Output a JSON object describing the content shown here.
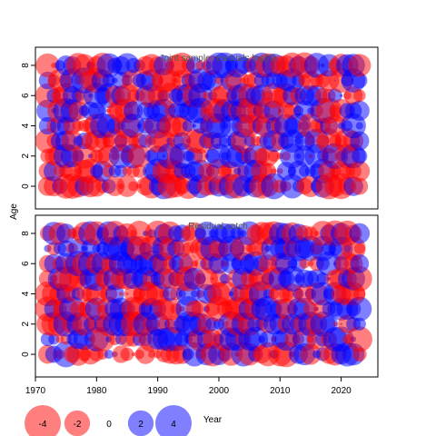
{
  "chart_data": [
    {
      "type": "scatter",
      "title": "Joint sample residuals log(N)",
      "ylabel": "Age",
      "x_range": [
        1970,
        2026
      ],
      "ylim": [
        -1.5,
        9.2
      ],
      "y_ticks": [
        "0",
        "2",
        "4",
        "6",
        "8"
      ],
      "grid": false,
      "seed": 11
    },
    {
      "type": "scatter",
      "title": "Residual catch",
      "xlabel": "Year",
      "x_range": [
        1970,
        2026
      ],
      "ylim": [
        -1.5,
        9.2
      ],
      "x_ticks": [
        "1970",
        "1980",
        "1990",
        "2000",
        "2010",
        "2020"
      ],
      "y_ticks": [
        "0",
        "2",
        "4",
        "6",
        "8"
      ],
      "grid": false,
      "seed": 37
    }
  ],
  "shared": {
    "years": [
      1972,
      2023
    ],
    "ages": [
      0,
      1,
      2,
      3,
      4,
      5,
      6,
      7,
      8
    ],
    "negative_color": "#FF0000",
    "positive_color": "#0000FF",
    "opacity": 0.5
  },
  "legend": {
    "position": "bottom-left",
    "items": [
      {
        "label": "-4",
        "value": -4
      },
      {
        "label": "-2",
        "value": -2
      },
      {
        "label": "0",
        "value": 0
      },
      {
        "label": "2",
        "value": 2
      },
      {
        "label": "4",
        "value": 4
      }
    ]
  }
}
